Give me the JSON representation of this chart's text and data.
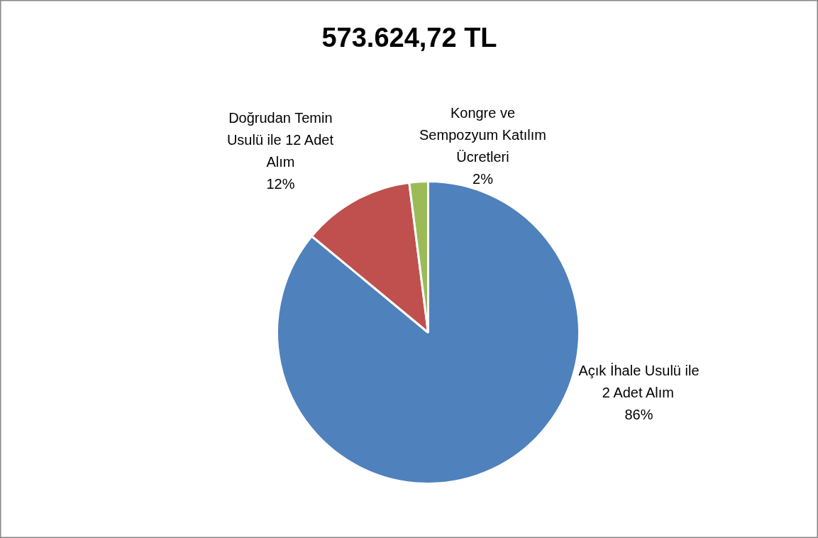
{
  "chart_data": {
    "type": "pie",
    "title": "573.624,72 TL",
    "categories": [
      "Açık İhale Usulü ile 2 Adet Alım",
      "Doğrudan Temin Usulü ile 12 Adet Alım",
      "Kongre ve Sempozyum Katılım Ücretleri"
    ],
    "values": [
      86,
      12,
      2
    ],
    "value_labels": [
      "86%",
      "12%",
      "2%"
    ],
    "colors": [
      "#4f81bd",
      "#c0504d",
      "#9bbb59"
    ]
  }
}
